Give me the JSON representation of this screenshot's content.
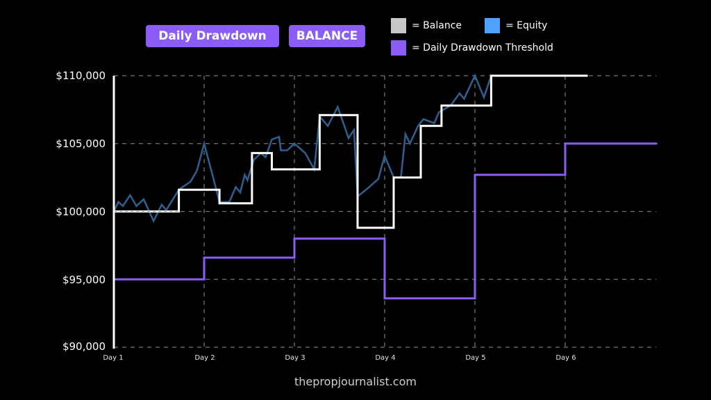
{
  "header": {
    "tags": [
      {
        "label": "Daily Drawdown"
      },
      {
        "label": "BALANCE"
      }
    ]
  },
  "legend": {
    "items": [
      {
        "label": "= Balance",
        "color": "#c8c8c8"
      },
      {
        "label": "= Equity",
        "color": "#4da3ff"
      },
      {
        "label": "= Daily Drawdown Threshold",
        "color": "#8b5cf6"
      }
    ]
  },
  "footer": {
    "text": "thepropjournalist.com"
  },
  "colors": {
    "background": "#000000",
    "balance": "#ffffff",
    "equity": "#2f5d8c",
    "threshold": "#8b5cf6",
    "grid": "#777777",
    "tag_bg": "#8b5cf6"
  },
  "chart_data": {
    "type": "line",
    "title": "Daily Drawdown - BALANCE",
    "xlabel": "",
    "ylabel": "",
    "ylim": [
      90000,
      110000
    ],
    "yticks": [
      "$90,000",
      "$95,000",
      "$100,000",
      "$105,000",
      "$110,000"
    ],
    "categories": [
      "Day 1",
      "Day 2",
      "Day 3",
      "Day 4",
      "Day 5",
      "Day 6"
    ],
    "grid": true,
    "legend_position": "top-right",
    "series": [
      {
        "name": "Balance",
        "style": "step",
        "points": [
          {
            "x": 1.0,
            "y": 100000
          },
          {
            "x": 1.72,
            "y": 100000
          },
          {
            "x": 1.72,
            "y": 101600
          },
          {
            "x": 2.17,
            "y": 101600
          },
          {
            "x": 2.17,
            "y": 100600
          },
          {
            "x": 2.53,
            "y": 100600
          },
          {
            "x": 2.53,
            "y": 104300
          },
          {
            "x": 2.75,
            "y": 104300
          },
          {
            "x": 2.75,
            "y": 103100
          },
          {
            "x": 3.28,
            "y": 103100
          },
          {
            "x": 3.28,
            "y": 107100
          },
          {
            "x": 3.7,
            "y": 107100
          },
          {
            "x": 3.7,
            "y": 98800
          },
          {
            "x": 4.1,
            "y": 98800
          },
          {
            "x": 4.1,
            "y": 102500
          },
          {
            "x": 4.4,
            "y": 102500
          },
          {
            "x": 4.4,
            "y": 106300
          },
          {
            "x": 4.63,
            "y": 106300
          },
          {
            "x": 4.63,
            "y": 107800
          },
          {
            "x": 5.18,
            "y": 107800
          },
          {
            "x": 5.18,
            "y": 110000
          },
          {
            "x": 6.25,
            "y": 110000
          }
        ]
      },
      {
        "name": "Equity",
        "style": "line",
        "points": [
          {
            "x": 1.0,
            "y": 100000
          },
          {
            "x": 1.05,
            "y": 100700
          },
          {
            "x": 1.1,
            "y": 100400
          },
          {
            "x": 1.18,
            "y": 101200
          },
          {
            "x": 1.25,
            "y": 100400
          },
          {
            "x": 1.33,
            "y": 100900
          },
          {
            "x": 1.44,
            "y": 99300
          },
          {
            "x": 1.53,
            "y": 100500
          },
          {
            "x": 1.58,
            "y": 100100
          },
          {
            "x": 1.72,
            "y": 101600
          },
          {
            "x": 1.85,
            "y": 102200
          },
          {
            "x": 1.92,
            "y": 103000
          },
          {
            "x": 2.0,
            "y": 105000
          },
          {
            "x": 2.08,
            "y": 103000
          },
          {
            "x": 2.17,
            "y": 100700
          },
          {
            "x": 2.28,
            "y": 100700
          },
          {
            "x": 2.35,
            "y": 101800
          },
          {
            "x": 2.4,
            "y": 101400
          },
          {
            "x": 2.45,
            "y": 102700
          },
          {
            "x": 2.48,
            "y": 102300
          },
          {
            "x": 2.55,
            "y": 103800
          },
          {
            "x": 2.63,
            "y": 104300
          },
          {
            "x": 2.68,
            "y": 104000
          },
          {
            "x": 2.75,
            "y": 105300
          },
          {
            "x": 2.83,
            "y": 105500
          },
          {
            "x": 2.85,
            "y": 104500
          },
          {
            "x": 2.92,
            "y": 104500
          },
          {
            "x": 3.0,
            "y": 105000
          },
          {
            "x": 3.12,
            "y": 104300
          },
          {
            "x": 3.22,
            "y": 103100
          },
          {
            "x": 3.28,
            "y": 107000
          },
          {
            "x": 3.37,
            "y": 106300
          },
          {
            "x": 3.48,
            "y": 107700
          },
          {
            "x": 3.6,
            "y": 105400
          },
          {
            "x": 3.66,
            "y": 106000
          },
          {
            "x": 3.7,
            "y": 101100
          },
          {
            "x": 3.83,
            "y": 101800
          },
          {
            "x": 3.93,
            "y": 102400
          },
          {
            "x": 4.0,
            "y": 104100
          },
          {
            "x": 4.1,
            "y": 102500
          },
          {
            "x": 4.18,
            "y": 102500
          },
          {
            "x": 4.23,
            "y": 105700
          },
          {
            "x": 4.28,
            "y": 105000
          },
          {
            "x": 4.37,
            "y": 106300
          },
          {
            "x": 4.43,
            "y": 106800
          },
          {
            "x": 4.55,
            "y": 106500
          },
          {
            "x": 4.6,
            "y": 107300
          },
          {
            "x": 4.73,
            "y": 107800
          },
          {
            "x": 4.83,
            "y": 108700
          },
          {
            "x": 4.88,
            "y": 108300
          },
          {
            "x": 5.0,
            "y": 110000
          },
          {
            "x": 5.1,
            "y": 108400
          },
          {
            "x": 5.18,
            "y": 110000
          }
        ]
      },
      {
        "name": "Daily Drawdown Threshold",
        "style": "step",
        "points": [
          {
            "x": 1.0,
            "y": 95000
          },
          {
            "x": 2.0,
            "y": 95000
          },
          {
            "x": 2.0,
            "y": 96600
          },
          {
            "x": 3.0,
            "y": 96600
          },
          {
            "x": 3.0,
            "y": 98000
          },
          {
            "x": 4.0,
            "y": 98000
          },
          {
            "x": 4.0,
            "y": 93600
          },
          {
            "x": 5.0,
            "y": 93600
          },
          {
            "x": 5.0,
            "y": 102700
          },
          {
            "x": 6.0,
            "y": 102700
          },
          {
            "x": 6.0,
            "y": 105000
          },
          {
            "x": 7.02,
            "y": 105000
          }
        ]
      }
    ]
  }
}
